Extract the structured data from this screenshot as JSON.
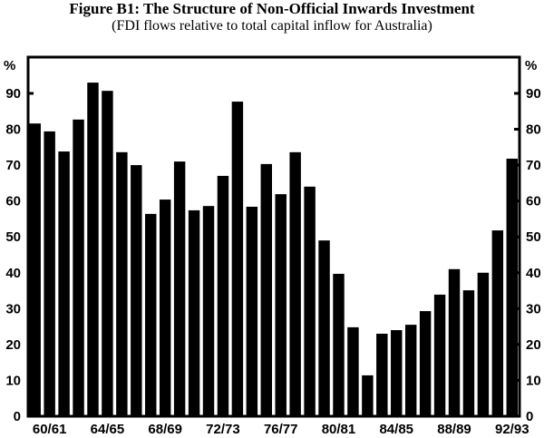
{
  "chart_data": {
    "type": "bar",
    "title": "Figure B1: The Structure of Non-Official Inwards Investment",
    "subtitle": "(FDI flows relative to total capital inflow for Australia)",
    "ylabel_left": "%",
    "ylabel_right": "%",
    "ylim": [
      0,
      100
    ],
    "yticks": [
      0,
      10,
      20,
      30,
      40,
      50,
      60,
      70,
      80,
      90
    ],
    "categories": [
      "59/60",
      "60/61",
      "61/62",
      "62/63",
      "63/64",
      "64/65",
      "65/66",
      "66/67",
      "67/68",
      "68/69",
      "69/70",
      "70/71",
      "71/72",
      "72/73",
      "73/74",
      "74/75",
      "75/76",
      "76/77",
      "77/78",
      "78/79",
      "79/80",
      "80/81",
      "81/82",
      "82/83",
      "83/84",
      "84/85",
      "85/86",
      "86/87",
      "87/88",
      "88/89",
      "89/90",
      "90/91",
      "91/92",
      "92/93"
    ],
    "xtick_labels": [
      "60/61",
      "64/65",
      "68/69",
      "72/73",
      "76/77",
      "80/81",
      "84/85",
      "88/89",
      "92/93"
    ],
    "values": [
      81.6,
      79.4,
      73.8,
      82.7,
      93.0,
      90.7,
      73.6,
      70.0,
      56.4,
      60.4,
      71.0,
      57.4,
      58.6,
      67.0,
      87.7,
      58.4,
      70.3,
      61.9,
      73.6,
      64.0,
      49.0,
      39.7,
      24.8,
      11.4,
      23.0,
      24.0,
      25.5,
      29.3,
      33.9,
      41.0,
      35.1,
      40.0,
      51.8,
      71.8
    ],
    "bar_color": "#000000",
    "grid": false
  }
}
